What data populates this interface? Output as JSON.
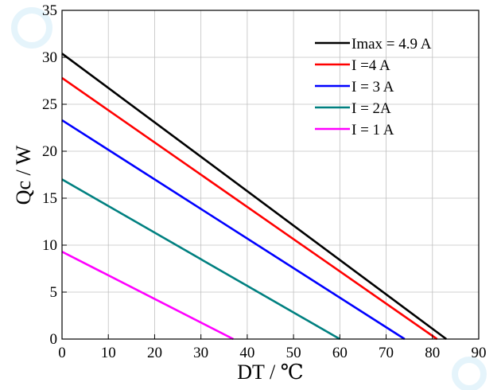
{
  "chart_data": {
    "type": "line",
    "xlabel": "DT / ℃",
    "ylabel": "Qc / W",
    "xlim": [
      0,
      90
    ],
    "ylim": [
      0,
      35
    ],
    "xticks": [
      "0",
      "10",
      "20",
      "30",
      "40",
      "50",
      "60",
      "70",
      "80",
      "90"
    ],
    "yticks": [
      "0",
      "5",
      "10",
      "15",
      "20",
      "25",
      "30",
      "35"
    ],
    "grid": true,
    "legend_position": "top-right",
    "series": [
      {
        "name": "Imax = 4.9 A",
        "color": "#000000",
        "x": [
          0,
          83
        ],
        "y": [
          30.4,
          0
        ]
      },
      {
        "name": "I =4 A",
        "color": "#ff0000",
        "x": [
          0,
          81
        ],
        "y": [
          27.8,
          0
        ]
      },
      {
        "name": "I = 3 A",
        "color": "#0000ff",
        "x": [
          0,
          74
        ],
        "y": [
          23.3,
          0
        ]
      },
      {
        "name": "I = 2A",
        "color": "#008080",
        "x": [
          0,
          60
        ],
        "y": [
          17.0,
          0
        ]
      },
      {
        "name": "I = 1 A",
        "color": "#ff00ff",
        "x": [
          0,
          37
        ],
        "y": [
          9.3,
          0
        ]
      }
    ]
  }
}
